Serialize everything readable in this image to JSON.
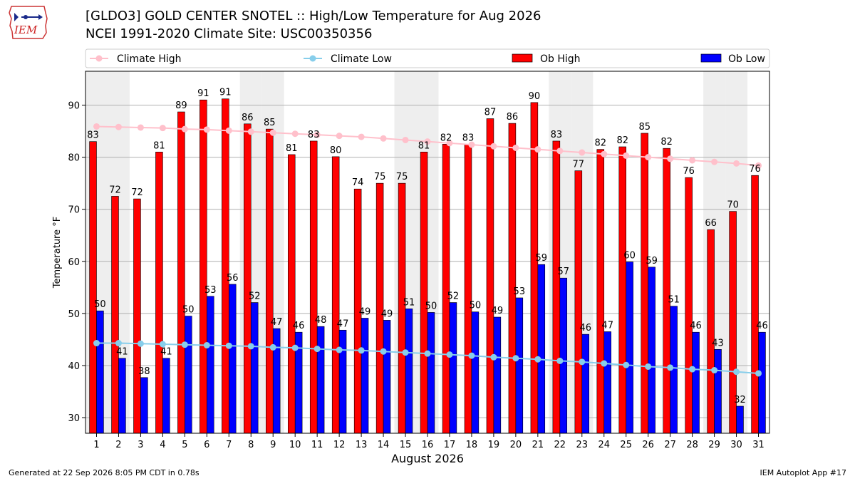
{
  "header": {
    "logo_text": "IEM",
    "title_line1": "[GLDO3] GOLD CENTER SNOTEL :: High/Low Temperature for Aug 2026",
    "title_line2": "NCEI 1991-2020 Climate Site: USC00350356"
  },
  "footer": {
    "left": "Generated at 22 Sep 2026 8:05 PM CDT in 0.78s",
    "right": "IEM Autoplot App #17"
  },
  "colors": {
    "climate_high": "#ffc0cb",
    "climate_low": "#87ceeb",
    "ob_high": "#ff0000",
    "ob_low": "#0000ff",
    "weekend_shade": "#eeeeee"
  },
  "chart_data": {
    "type": "bar",
    "xlabel": "August 2026",
    "ylabel": "Temperature °F",
    "ylim": [
      27,
      96.5
    ],
    "yticks": [
      30,
      40,
      50,
      60,
      70,
      80,
      90
    ],
    "grid": true,
    "legend_placement": "top",
    "shaded_days": [
      1,
      2,
      8,
      9,
      15,
      16,
      22,
      23,
      29,
      30
    ],
    "categories": [
      "1",
      "2",
      "3",
      "4",
      "5",
      "6",
      "7",
      "8",
      "9",
      "10",
      "11",
      "12",
      "13",
      "14",
      "15",
      "16",
      "17",
      "18",
      "19",
      "20",
      "21",
      "22",
      "23",
      "24",
      "25",
      "26",
      "27",
      "28",
      "29",
      "30",
      "31"
    ],
    "series": [
      {
        "name": "Climate High",
        "kind": "line",
        "values": [
          85.9,
          85.8,
          85.7,
          85.6,
          85.4,
          85.3,
          85.1,
          84.9,
          84.7,
          84.5,
          84.3,
          84.1,
          83.9,
          83.6,
          83.3,
          83.0,
          82.7,
          82.4,
          82.1,
          81.8,
          81.5,
          81.2,
          80.9,
          80.6,
          80.3,
          80.0,
          79.7,
          79.4,
          79.1,
          78.8,
          78.4
        ]
      },
      {
        "name": "Climate Low",
        "kind": "line",
        "values": [
          44.3,
          44.3,
          44.2,
          44.1,
          44.0,
          43.9,
          43.8,
          43.7,
          43.5,
          43.4,
          43.2,
          43.0,
          42.9,
          42.7,
          42.5,
          42.3,
          42.1,
          41.9,
          41.6,
          41.4,
          41.2,
          40.9,
          40.7,
          40.4,
          40.1,
          39.8,
          39.6,
          39.3,
          39.1,
          38.8,
          38.5
        ]
      },
      {
        "name": "Ob High",
        "kind": "bar",
        "values": [
          83,
          72.5,
          72,
          81,
          88.7,
          91,
          91.2,
          86.4,
          85.4,
          80.5,
          83.1,
          80.1,
          73.9,
          75,
          75,
          81,
          82.5,
          82.5,
          87.4,
          86.5,
          90.5,
          83.1,
          77.4,
          81.5,
          82,
          84.6,
          81.7,
          76.1,
          66.1,
          69.6,
          76.5
        ]
      },
      {
        "name": "Ob Low",
        "kind": "bar",
        "values": [
          50.5,
          41.4,
          37.7,
          41.4,
          49.5,
          53.3,
          55.6,
          52.1,
          47.1,
          46.4,
          47.5,
          46.8,
          49.1,
          48.7,
          50.9,
          50.2,
          52.1,
          50.3,
          49.3,
          53,
          59.4,
          56.8,
          46,
          46.5,
          59.9,
          58.9,
          51.4,
          46.4,
          43.1,
          32.2,
          46.4
        ]
      }
    ],
    "data_labels": {
      "Ob High": [
        "83",
        "72",
        "72",
        "81",
        "89",
        "91",
        "91",
        "86",
        "85",
        "81",
        "83",
        "80",
        "74",
        "75",
        "75",
        "81",
        "82",
        "83",
        "87",
        "86",
        "90",
        "83",
        "77",
        "82",
        "82",
        "85",
        "82",
        "76",
        "66",
        "70",
        "76"
      ],
      "Ob Low": [
        "50",
        "41",
        "38",
        "41",
        "50",
        "53",
        "56",
        "52",
        "47",
        "46",
        "48",
        "47",
        "49",
        "49",
        "51",
        "50",
        "52",
        "50",
        "49",
        "53",
        "59",
        "57",
        "46",
        "47",
        "60",
        "59",
        "51",
        "46",
        "43",
        "32",
        "46"
      ]
    }
  }
}
